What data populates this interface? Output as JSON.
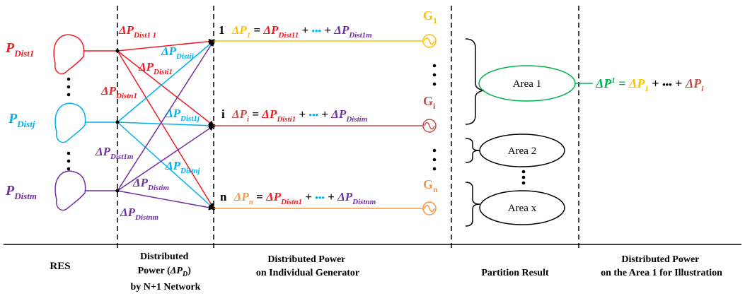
{
  "colors": {
    "red": "#ee1c25",
    "blue": "#00b0f0",
    "purple": "#7030a0",
    "yellow": "#ffc000",
    "brown": "#c0504d",
    "orange": "#f79646",
    "green": "#00b050",
    "black": "#000000"
  },
  "sections": {
    "res": "RES",
    "distributed_power_line1": "Distributed",
    "distributed_power_line2_pre": "Power (",
    "distributed_power_line2_delta": "ΔP",
    "distributed_power_line2_sub": "D",
    "distributed_power_line2_post": ")",
    "distributed_power_line3": "by N+1 Network",
    "individual_line1": "Distributed Power",
    "individual_line2": "on Individual Generator",
    "partition": "Partition Result",
    "area_line1": "Distributed Power",
    "area_line2": "on the Area 1 for Illustration"
  },
  "sources": [
    {
      "label": "P",
      "sub": "Dist1",
      "color": "red"
    },
    {
      "label": "P",
      "sub": "Distj",
      "color": "blue"
    },
    {
      "label": "P",
      "sub": "Distm",
      "color": "purple"
    }
  ],
  "vdots": "⋮",
  "flows": {
    "d11": {
      "main": "ΔP",
      "sub": "Dist1 1"
    },
    "d1j": {
      "main": "ΔP",
      "sub": "Distij"
    },
    "di1": {
      "main": "ΔP",
      "sub": "Disti1"
    },
    "dn1": {
      "main": "ΔP",
      "sub": "Distn1"
    },
    "dj1": {
      "main": "ΔP",
      "sub": "Dist1j"
    },
    "d1m": {
      "main": "ΔP",
      "sub": "Dist1m"
    },
    "dnj": {
      "main": "ΔP",
      "sub": "Distnj"
    },
    "dim": {
      "main": "ΔP",
      "sub": "Distim"
    },
    "dnm": {
      "main": "ΔP",
      "sub": "Distnm"
    }
  },
  "generators": [
    {
      "index": "1",
      "lhs": "ΔP",
      "lhs_sub": "1",
      "eq": " = ",
      "t1": "ΔP",
      "t1_sub": "Dist11",
      "plus": " + ",
      "dots": "•••",
      "t2": "ΔP",
      "t2_sub": "Dist1m",
      "g": "G",
      "g_sub": "1"
    },
    {
      "index": "i",
      "lhs": "ΔP",
      "lhs_sub": "i",
      "eq": " = ",
      "t1": "ΔP",
      "t1_sub": "Disti1",
      "plus": " + ",
      "dots": "•••",
      "t2": "ΔP",
      "t2_sub": "Distim",
      "g": "G",
      "g_sub": "i"
    },
    {
      "index": "n",
      "lhs": "ΔP",
      "lhs_sub": "n",
      "eq": " = ",
      "t1": "ΔP",
      "t1_sub": "Distn1",
      "plus": " + ",
      "dots": "•••",
      "t2": "ΔP",
      "t2_sub": "Distnm",
      "g": "G",
      "g_sub": "n"
    }
  ],
  "areas": [
    "Area 1",
    "Area 2",
    "Area x"
  ],
  "area_formula": {
    "lhs": "ΔP",
    "lhs_sup": "1",
    "eq": "=",
    "t1": "ΔP",
    "t1_sub": "1",
    "plus1": "+",
    "dots": "•••",
    "plus2": "+",
    "t2": "ΔP",
    "t2_sub": "i"
  }
}
